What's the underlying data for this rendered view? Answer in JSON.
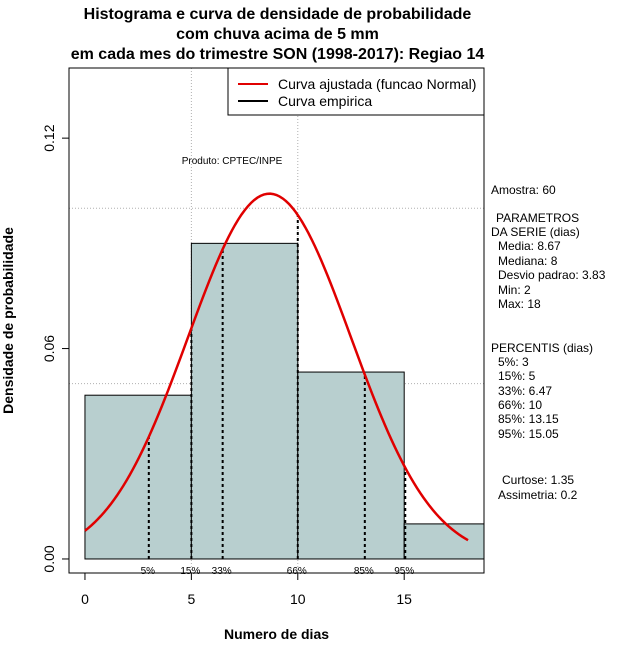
{
  "chart_data": {
    "type": "histogram",
    "title_lines": [
      "Histograma e curva de densidade de probabilidade",
      "com chuva acima de 5 mm",
      "em cada mes do trimestre SON (1998-2017): Regiao 14"
    ],
    "xlabel": "Numero de dias",
    "ylabel": "Densidade de probabilidade",
    "xlim": [
      -0.75,
      18.75
    ],
    "ylim": [
      -0.004,
      0.14
    ],
    "x_ticks": [
      0,
      5,
      10,
      15
    ],
    "y_ticks": [
      0.0,
      0.06,
      0.12
    ],
    "y_tick_labels": [
      "0.00",
      "0.06",
      "0.12"
    ],
    "bins": [
      {
        "from": 0,
        "to": 5,
        "density": 0.0467
      },
      {
        "from": 5,
        "to": 10,
        "density": 0.09
      },
      {
        "from": 10,
        "to": 15,
        "density": 0.0533
      },
      {
        "from": 15,
        "to": 18.75,
        "density": 0.01
      }
    ],
    "grid_x": [
      5,
      10
    ],
    "grid_y": [
      0.05,
      0.1
    ],
    "bar_color": "#b8cfcf",
    "normal_fit": {
      "mean": 8.67,
      "sd": 3.83,
      "x_from": 0,
      "x_to": 18,
      "color": "#e00000"
    },
    "percentile_markers": [
      {
        "label": "5%",
        "x": 3
      },
      {
        "label": "15%",
        "x": 5
      },
      {
        "label": "33%",
        "x": 6.47
      },
      {
        "label": "66%",
        "x": 10
      },
      {
        "label": "85%",
        "x": 13.15
      },
      {
        "label": "95%",
        "x": 15.05
      }
    ],
    "legend": {
      "position": "top-right",
      "entries": [
        {
          "label": "Curva ajustada (funcao Normal)",
          "color": "#e00000"
        },
        {
          "label": "Curva empirica",
          "color": "#000000"
        }
      ]
    },
    "annotation": "Produto: CPTEC/INPE"
  },
  "stats": {
    "amostra": "Amostra: 60",
    "param_header_1": "PARAMETROS",
    "param_header_2": "DA SERIE (dias)",
    "params": [
      "Media: 8.67",
      "Mediana: 8",
      "Desvio padrao: 3.83",
      "Min: 2",
      "Max: 18"
    ],
    "perc_header": "PERCENTIS (dias)",
    "percentis": [
      "5%: 3",
      "15%: 5",
      "33%: 6.47",
      "66%: 10",
      "85%: 13.15",
      "95%: 15.05"
    ],
    "curtose": "Curtose: 1.35",
    "assimetria": "Assimetria: 0.2"
  }
}
